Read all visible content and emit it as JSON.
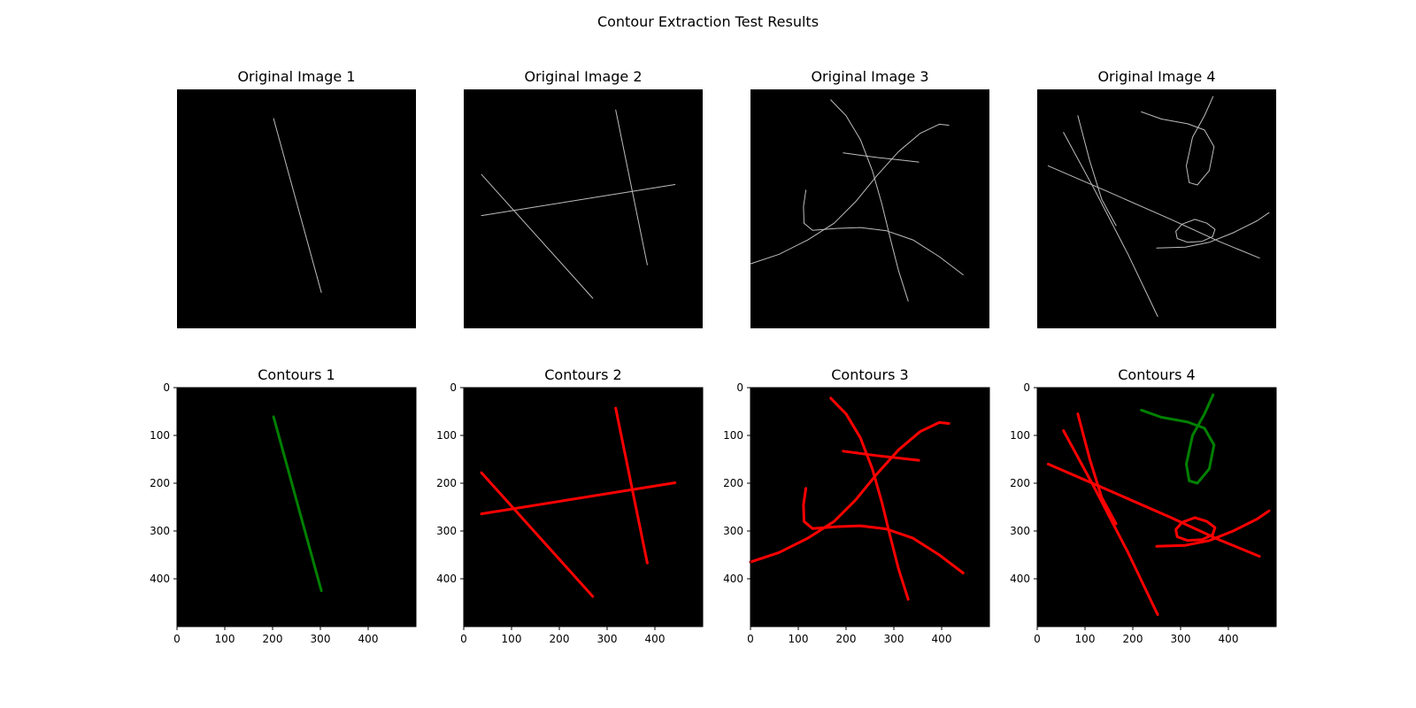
{
  "figure": {
    "title": "Contour Extraction Test Results"
  },
  "colors": {
    "background": "#000000",
    "original_stroke": "#bdbdbd",
    "closed_contour": "#008000",
    "open_contour": "#ff0000"
  },
  "chart_data": [
    {
      "type": "line",
      "title": "Original Image 1",
      "axes_visible": false,
      "xlim": [
        0,
        500
      ],
      "ylim": [
        500,
        0
      ],
      "series": [
        {
          "color": "original",
          "points": [
            [
              202,
              61
            ],
            [
              302,
              425
            ]
          ]
        }
      ]
    },
    {
      "type": "line",
      "title": "Original Image 2",
      "axes_visible": false,
      "xlim": [
        0,
        500
      ],
      "ylim": [
        500,
        0
      ],
      "series": [
        {
          "color": "original",
          "points": [
            [
              318,
              43
            ],
            [
              384,
              367
            ]
          ]
        },
        {
          "color": "original",
          "points": [
            [
              37,
              178
            ],
            [
              270,
              437
            ]
          ]
        },
        {
          "color": "original",
          "points": [
            [
              37,
              264
            ],
            [
              442,
              199
            ]
          ]
        }
      ]
    },
    {
      "type": "line",
      "title": "Original Image 3",
      "axes_visible": false,
      "xlim": [
        0,
        500
      ],
      "ylim": [
        500,
        0
      ],
      "series": [
        {
          "color": "original",
          "points": [
            [
              168,
              22
            ],
            [
              200,
              55
            ],
            [
              230,
              105
            ],
            [
              255,
              170
            ],
            [
              275,
              240
            ],
            [
              292,
              310
            ],
            [
              310,
              380
            ],
            [
              330,
              443
            ]
          ]
        },
        {
          "color": "original",
          "points": [
            [
              0,
              365
            ],
            [
              60,
              345
            ],
            [
              120,
              315
            ],
            [
              175,
              280
            ],
            [
              220,
              235
            ],
            [
              265,
              180
            ],
            [
              310,
              130
            ],
            [
              355,
              92
            ],
            [
              395,
              73
            ],
            [
              415,
              75
            ]
          ]
        },
        {
          "color": "original",
          "points": [
            [
              194,
              133
            ],
            [
              262,
              142
            ],
            [
              352,
              152
            ]
          ]
        },
        {
          "color": "original",
          "points": [
            [
              116,
              211
            ],
            [
              111,
              245
            ],
            [
              112,
              280
            ],
            [
              130,
              295
            ],
            [
              180,
              291
            ],
            [
              230,
              289
            ],
            [
              285,
              296
            ],
            [
              340,
              315
            ],
            [
              395,
              350
            ],
            [
              445,
              388
            ]
          ]
        }
      ]
    },
    {
      "type": "line",
      "title": "Original Image 4",
      "axes_visible": false,
      "xlim": [
        0,
        500
      ],
      "ylim": [
        500,
        0
      ],
      "series": [
        {
          "color": "original",
          "points": [
            [
              85,
              55
            ],
            [
              110,
              150
            ],
            [
              135,
              230
            ],
            [
              165,
              285
            ]
          ]
        },
        {
          "color": "original",
          "points": [
            [
              55,
              90
            ],
            [
              120,
              210
            ],
            [
              190,
              345
            ],
            [
              252,
              475
            ]
          ]
        },
        {
          "color": "original",
          "points": [
            [
              23,
              160
            ],
            [
              150,
              215
            ],
            [
              280,
              272
            ],
            [
              380,
              318
            ],
            [
              465,
              353
            ]
          ]
        },
        {
          "color": "original",
          "points": [
            [
              218,
              47
            ],
            [
              260,
              62
            ],
            [
              315,
              72
            ],
            [
              350,
              85
            ],
            [
              370,
              120
            ],
            [
              360,
              170
            ],
            [
              335,
              200
            ],
            [
              318,
              195
            ],
            [
              312,
              160
            ],
            [
              325,
              100
            ],
            [
              350,
              55
            ],
            [
              368,
              15
            ]
          ]
        },
        {
          "color": "original",
          "points": [
            [
              250,
              332
            ],
            [
              310,
              330
            ],
            [
              360,
              320
            ],
            [
              410,
              300
            ],
            [
              460,
              275
            ],
            [
              485,
              258
            ]
          ]
        },
        {
          "color": "original",
          "points": [
            [
              330,
              272
            ],
            [
              355,
              280
            ],
            [
              372,
              293
            ],
            [
              367,
              308
            ],
            [
              345,
              318
            ],
            [
              315,
              320
            ],
            [
              293,
              312
            ],
            [
              290,
              297
            ],
            [
              303,
              282
            ],
            [
              330,
              272
            ]
          ]
        }
      ]
    },
    {
      "type": "line",
      "title": "Contours 1",
      "axes_visible": true,
      "xlim": [
        0,
        500
      ],
      "ylim": [
        500,
        0
      ],
      "x_ticks": [
        0,
        100,
        200,
        300,
        400
      ],
      "y_ticks": [
        0,
        100,
        200,
        300,
        400
      ],
      "series": [
        {
          "color": "closed",
          "points": [
            [
              202,
              61
            ],
            [
              302,
              425
            ]
          ]
        }
      ]
    },
    {
      "type": "line",
      "title": "Contours 2",
      "axes_visible": true,
      "xlim": [
        0,
        500
      ],
      "ylim": [
        500,
        0
      ],
      "x_ticks": [
        0,
        100,
        200,
        300,
        400
      ],
      "y_ticks": [
        0,
        100,
        200,
        300,
        400
      ],
      "series": [
        {
          "color": "open",
          "points": [
            [
              318,
              43
            ],
            [
              384,
              367
            ]
          ]
        },
        {
          "color": "open",
          "points": [
            [
              37,
              178
            ],
            [
              270,
              437
            ]
          ]
        },
        {
          "color": "open",
          "points": [
            [
              37,
              264
            ],
            [
              442,
              199
            ]
          ]
        }
      ]
    },
    {
      "type": "line",
      "title": "Contours 3",
      "axes_visible": true,
      "xlim": [
        0,
        500
      ],
      "ylim": [
        500,
        0
      ],
      "x_ticks": [
        0,
        100,
        200,
        300,
        400
      ],
      "y_ticks": [
        0,
        100,
        200,
        300,
        400
      ],
      "series": [
        {
          "color": "open",
          "points": [
            [
              168,
              22
            ],
            [
              200,
              55
            ],
            [
              230,
              105
            ],
            [
              255,
              170
            ],
            [
              275,
              240
            ],
            [
              292,
              310
            ],
            [
              310,
              380
            ],
            [
              330,
              443
            ]
          ]
        },
        {
          "color": "open",
          "points": [
            [
              0,
              365
            ],
            [
              60,
              345
            ],
            [
              120,
              315
            ],
            [
              175,
              280
            ],
            [
              220,
              235
            ],
            [
              265,
              180
            ],
            [
              310,
              130
            ],
            [
              355,
              92
            ],
            [
              395,
              73
            ],
            [
              415,
              75
            ]
          ]
        },
        {
          "color": "open",
          "points": [
            [
              194,
              133
            ],
            [
              262,
              142
            ],
            [
              352,
              152
            ]
          ]
        },
        {
          "color": "open",
          "points": [
            [
              116,
              211
            ],
            [
              111,
              245
            ],
            [
              112,
              280
            ],
            [
              130,
              295
            ],
            [
              180,
              291
            ],
            [
              230,
              289
            ],
            [
              285,
              296
            ],
            [
              340,
              315
            ],
            [
              395,
              350
            ],
            [
              445,
              388
            ]
          ]
        }
      ]
    },
    {
      "type": "line",
      "title": "Contours 4",
      "axes_visible": true,
      "xlim": [
        0,
        500
      ],
      "ylim": [
        500,
        0
      ],
      "x_ticks": [
        0,
        100,
        200,
        300,
        400
      ],
      "y_ticks": [
        0,
        100,
        200,
        300,
        400
      ],
      "series": [
        {
          "color": "open",
          "points": [
            [
              85,
              55
            ],
            [
              110,
              150
            ],
            [
              135,
              230
            ],
            [
              165,
              285
            ]
          ]
        },
        {
          "color": "open",
          "points": [
            [
              55,
              90
            ],
            [
              120,
              210
            ],
            [
              190,
              345
            ],
            [
              252,
              475
            ]
          ]
        },
        {
          "color": "open",
          "points": [
            [
              23,
              160
            ],
            [
              150,
              215
            ],
            [
              280,
              272
            ],
            [
              380,
              318
            ],
            [
              465,
              353
            ]
          ]
        },
        {
          "color": "closed",
          "points": [
            [
              218,
              47
            ],
            [
              260,
              62
            ],
            [
              315,
              72
            ],
            [
              350,
              85
            ],
            [
              370,
              120
            ],
            [
              360,
              170
            ],
            [
              335,
              200
            ],
            [
              318,
              195
            ],
            [
              312,
              160
            ],
            [
              325,
              100
            ],
            [
              350,
              55
            ],
            [
              368,
              15
            ]
          ]
        },
        {
          "color": "open",
          "points": [
            [
              250,
              332
            ],
            [
              310,
              330
            ],
            [
              360,
              320
            ],
            [
              410,
              300
            ],
            [
              460,
              275
            ],
            [
              485,
              258
            ]
          ]
        },
        {
          "color": "open",
          "points": [
            [
              330,
              272
            ],
            [
              355,
              280
            ],
            [
              372,
              293
            ],
            [
              367,
              308
            ],
            [
              345,
              318
            ],
            [
              315,
              320
            ],
            [
              293,
              312
            ],
            [
              290,
              297
            ],
            [
              303,
              282
            ],
            [
              330,
              272
            ]
          ]
        }
      ]
    }
  ]
}
